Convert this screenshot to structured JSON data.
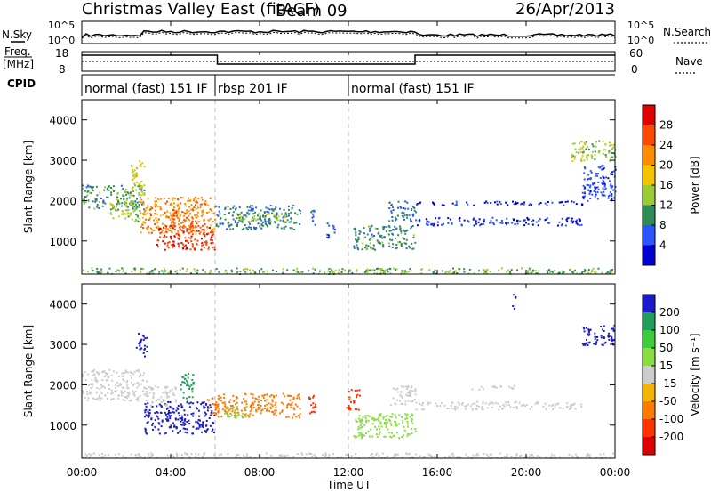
{
  "header": {
    "title": "Christmas Valley East (fitACF)",
    "beam": "Beam 09",
    "date": "26/Apr/2013"
  },
  "top_panels": {
    "nsky_label": "N.Sky",
    "nsky_ticks": [
      "10^5",
      "10^0"
    ],
    "nsearch_label": "N.Search",
    "nsearch_ticks": [
      "10^5",
      "10^0"
    ],
    "freq_label_1": "Freq.",
    "freq_label_2": "[MHz]",
    "freq_ticks": [
      "18",
      "8"
    ],
    "nave_label": "Nave",
    "nave_ticks": [
      "60",
      "0"
    ],
    "cpid_label": "CPID"
  },
  "modes": [
    {
      "label": "normal (fast) 151 IF",
      "start_hour": 0,
      "end_hour": 6
    },
    {
      "label": "rbsp 201 IF",
      "start_hour": 6,
      "end_hour": 12
    },
    {
      "label": "normal (fast) 151 IF",
      "start_hour": 12,
      "end_hour": 24
    }
  ],
  "x_axis": {
    "label": "Time UT",
    "ticks": [
      "00:00",
      "04:00",
      "08:00",
      "12:00",
      "16:00",
      "20:00",
      "00:00"
    ]
  },
  "colorbars": {
    "power": {
      "label": "Power [dB]",
      "ticks": [
        "28",
        "24",
        "20",
        "16",
        "12",
        "8",
        "4"
      ],
      "colors": [
        "#e00000",
        "#ff4800",
        "#ff8c00",
        "#f5c400",
        "#9ccc33",
        "#2e8b57",
        "#2a55ff",
        "#0000d0"
      ]
    },
    "velocity": {
      "label": "Velocity [m s⁻¹]",
      "ticks": [
        "200",
        "100",
        "50",
        "15",
        "-15",
        "-50",
        "-100",
        "-200"
      ],
      "colors": [
        "#1a1acc",
        "#1fa05a",
        "#3ccc3c",
        "#88dd44",
        "#cccccc",
        "#f5b400",
        "#ff7a00",
        "#ff3300",
        "#dd0000"
      ]
    }
  },
  "chart_data": [
    {
      "type": "heatmap",
      "title": "Power",
      "ylabel": "Slant Range [km]",
      "xlabel": "Time UT",
      "x_unit": "hour UT",
      "xlim": [
        0,
        24
      ],
      "ylim": [
        180,
        4500
      ],
      "yticks": [
        1000,
        2000,
        3000,
        4000
      ],
      "ytick_labels": [
        "1000",
        "2000",
        "3000",
        "4000"
      ],
      "cbar_ticks": [
        28,
        24,
        20,
        16,
        12,
        8,
        4
      ],
      "regions": [
        {
          "x": [
            0.0,
            2.8
          ],
          "y": [
            1800,
            2400
          ],
          "value": 10
        },
        {
          "x": [
            1.2,
            2.6
          ],
          "y": [
            1500,
            2000
          ],
          "value": 14
        },
        {
          "x": [
            2.2,
            2.8
          ],
          "y": [
            2100,
            3000
          ],
          "value": 16
        },
        {
          "x": [
            2.6,
            6.0
          ],
          "y": [
            1200,
            2100
          ],
          "value": 22
        },
        {
          "x": [
            3.3,
            6.0
          ],
          "y": [
            800,
            1400
          ],
          "value": 27
        },
        {
          "x": [
            4.0,
            5.0
          ],
          "y": [
            1300,
            1800
          ],
          "value": 25
        },
        {
          "x": [
            6.0,
            9.8
          ],
          "y": [
            1300,
            1900
          ],
          "value": 9
        },
        {
          "x": [
            6.9,
            9.2
          ],
          "y": [
            1500,
            1700
          ],
          "value": 14
        },
        {
          "x": [
            10.2,
            10.5
          ],
          "y": [
            1400,
            1800
          ],
          "value": 7
        },
        {
          "x": [
            11.0,
            11.4
          ],
          "y": [
            1100,
            1500
          ],
          "value": 6
        },
        {
          "x": [
            12.2,
            15.0
          ],
          "y": [
            800,
            1400
          ],
          "value": 10
        },
        {
          "x": [
            13.8,
            15.0
          ],
          "y": [
            1500,
            2000
          ],
          "value": 7
        },
        {
          "x": [
            15.0,
            22.5
          ],
          "y": [
            1400,
            1600
          ],
          "value": 4
        },
        {
          "x": [
            15.0,
            22.5
          ],
          "y": [
            1900,
            2000
          ],
          "value": 4
        },
        {
          "x": [
            22.0,
            24.0
          ],
          "y": [
            3000,
            3500
          ],
          "value": 14
        },
        {
          "x": [
            22.5,
            24.0
          ],
          "y": [
            2000,
            2900
          ],
          "value": 5
        },
        {
          "x": [
            0.0,
            24.0
          ],
          "y": [
            200,
            350
          ],
          "value": 12
        }
      ]
    },
    {
      "type": "heatmap",
      "title": "Velocity",
      "ylabel": "Slant Range [km]",
      "xlabel": "Time UT",
      "x_unit": "hour UT",
      "xlim": [
        0,
        24
      ],
      "ylim": [
        180,
        4500
      ],
      "yticks": [
        1000,
        2000,
        3000,
        4000
      ],
      "ytick_labels": [
        "1000",
        "2000",
        "3000",
        "4000"
      ],
      "cbar_ticks": [
        200,
        100,
        50,
        15,
        -15,
        -50,
        -100,
        -200
      ],
      "regions": [
        {
          "x": [
            0.0,
            3.0
          ],
          "y": [
            1600,
            2400
          ],
          "value": 0
        },
        {
          "x": [
            2.4,
            2.9
          ],
          "y": [
            2700,
            3300
          ],
          "value": 220
        },
        {
          "x": [
            2.8,
            6.0
          ],
          "y": [
            800,
            1600
          ],
          "value": 220
        },
        {
          "x": [
            3.0,
            4.2
          ],
          "y": [
            1500,
            2000
          ],
          "value": 0
        },
        {
          "x": [
            4.4,
            5.0
          ],
          "y": [
            1600,
            2300
          ],
          "value": 180
        },
        {
          "x": [
            5.6,
            6.2
          ],
          "y": [
            1300,
            1700
          ],
          "value": -80
        },
        {
          "x": [
            6.0,
            9.8
          ],
          "y": [
            1200,
            1800
          ],
          "value": -70
        },
        {
          "x": [
            6.4,
            7.4
          ],
          "y": [
            1200,
            1500
          ],
          "value": 40
        },
        {
          "x": [
            10.2,
            10.5
          ],
          "y": [
            1300,
            1900
          ],
          "value": -150
        },
        {
          "x": [
            11.9,
            12.5
          ],
          "y": [
            1400,
            1900
          ],
          "value": -150
        },
        {
          "x": [
            12.2,
            15.0
          ],
          "y": [
            700,
            1300
          ],
          "value": 30
        },
        {
          "x": [
            13.8,
            15.0
          ],
          "y": [
            1500,
            2000
          ],
          "value": 0
        },
        {
          "x": [
            15.0,
            22.5
          ],
          "y": [
            1400,
            1600
          ],
          "value": 0
        },
        {
          "x": [
            17.5,
            19.5
          ],
          "y": [
            1900,
            2000
          ],
          "value": 0
        },
        {
          "x": [
            19.3,
            19.5
          ],
          "y": [
            3900,
            4300
          ],
          "value": 220
        },
        {
          "x": [
            22.5,
            24.0
          ],
          "y": [
            3000,
            3500
          ],
          "value": 230
        },
        {
          "x": [
            0.0,
            24.0
          ],
          "y": [
            200,
            330
          ],
          "value": 0
        }
      ]
    }
  ]
}
